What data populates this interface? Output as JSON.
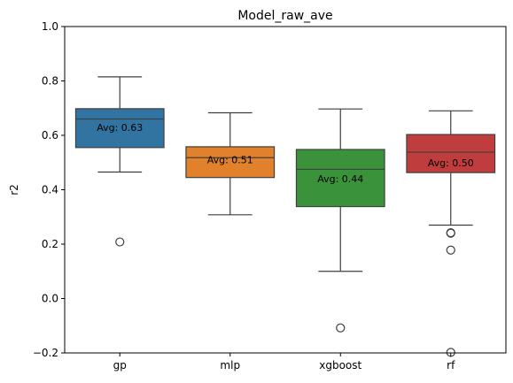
{
  "chart_data": {
    "type": "box",
    "title": "Model_raw_ave",
    "xlabel": "",
    "ylabel": "r2",
    "ylim": [
      -0.2,
      1.0
    ],
    "yticks": [
      -0.2,
      0.0,
      0.2,
      0.4,
      0.6,
      0.8,
      1.0
    ],
    "ytick_labels": [
      "−0.2",
      "0.0",
      "0.2",
      "0.4",
      "0.6",
      "0.8",
      "1.0"
    ],
    "grid": false,
    "categories": [
      "gp",
      "mlp",
      "xgboost",
      "rf"
    ],
    "boxes": [
      {
        "category": "gp",
        "color": "#3274a1",
        "whisker_low": 0.465,
        "q1": 0.555,
        "median": 0.66,
        "q3": 0.698,
        "whisker_high": 0.815,
        "outliers": [
          0.208
        ],
        "avg_label": "Avg: 0.63",
        "avg": 0.63
      },
      {
        "category": "mlp",
        "color": "#e1812c",
        "whisker_low": 0.308,
        "q1": 0.445,
        "median": 0.518,
        "q3": 0.558,
        "whisker_high": 0.683,
        "outliers": [],
        "avg_label": "Avg: 0.51",
        "avg": 0.51
      },
      {
        "category": "xgboost",
        "color": "#3a923a",
        "whisker_low": 0.1,
        "q1": 0.338,
        "median": 0.475,
        "q3": 0.548,
        "whisker_high": 0.697,
        "outliers": [
          -0.108
        ],
        "avg_label": "Avg: 0.44",
        "avg": 0.44
      },
      {
        "category": "rf",
        "color": "#c03d3e",
        "whisker_low": 0.27,
        "q1": 0.463,
        "median": 0.538,
        "q3": 0.603,
        "whisker_high": 0.69,
        "outliers": [
          0.242,
          0.24,
          0.178,
          -0.198
        ],
        "avg_label": "Avg: 0.50",
        "avg": 0.5
      }
    ]
  }
}
